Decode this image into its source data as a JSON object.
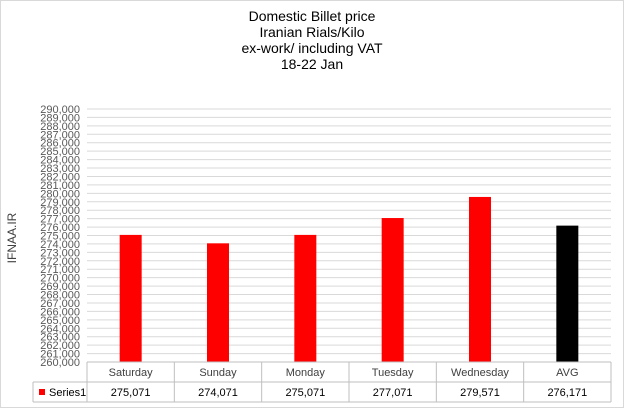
{
  "chart_data": {
    "type": "bar",
    "title": "Domestic Billet price",
    "subtitle": [
      "Iranian Rials/Kilo",
      "ex-work/ including VAT",
      "18-22 Jan"
    ],
    "xlabel": "",
    "ylabel": "IFNAA.IR",
    "ylim": [
      260000,
      290000
    ],
    "y_tick_labels": [
      "260,000",
      "261,000",
      "262,000",
      "263,000",
      "264,000",
      "265,000",
      "266,000",
      "267,000",
      "268,000",
      "269,000",
      "270,000",
      "271,000",
      "272,000",
      "273,000",
      "274,000",
      "275,000",
      "276,000",
      "277,000",
      "278,000",
      "279,000",
      "280,000",
      "281,000",
      "282,000",
      "283,000",
      "284,000",
      "285,000",
      "286,000",
      "287,000",
      "288,000",
      "289,000",
      "290,000"
    ],
    "categories": [
      "Saturday",
      "Sunday",
      "Monday",
      "Tuesday",
      "Wednesday",
      "AVG"
    ],
    "series": [
      {
        "name": "Series1",
        "values": [
          275071,
          274071,
          275071,
          277071,
          279571,
          276171
        ],
        "value_labels": [
          "275,071",
          "274,071",
          "275,071",
          "277,071",
          "279,571",
          "276,171"
        ],
        "colors": [
          "#ff0000",
          "#ff0000",
          "#ff0000",
          "#ff0000",
          "#ff0000",
          "#000000"
        ]
      }
    ],
    "grid": true,
    "legend": "data-table-left",
    "data_table": true
  }
}
